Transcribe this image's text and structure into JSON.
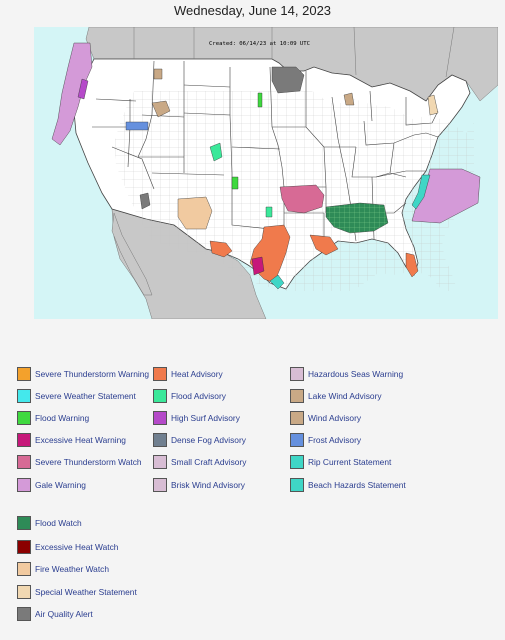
{
  "page": {
    "title": "Wednesday, June 14, 2023"
  },
  "map": {
    "created_label": "Created: 06/14/23 at 10:09 UTC",
    "colors": {
      "ocean": "#d4f5f6",
      "land_foreign": "#c8c8c8",
      "land_us": "#ffffff",
      "county_lines": "#bdbdbd",
      "state_lines": "#444444"
    }
  },
  "legend": {
    "columns": [
      [
        {
          "label": "Severe Thunderstorm Warning",
          "color": "#f3a12c"
        },
        {
          "label": "Severe Weather Statement",
          "color": "#44e8ec"
        },
        {
          "label": "Flood Warning",
          "color": "#3fd93f"
        },
        {
          "label": "Excessive Heat Warning",
          "color": "#c6187a"
        },
        {
          "label": "Severe Thunderstorm Watch",
          "color": "#d76a95"
        },
        {
          "label": "Gale Warning",
          "color": "#d49ad8"
        }
      ],
      [
        {
          "label": "Heat Advisory",
          "color": "#f07a4c"
        },
        {
          "label": "Flood Advisory",
          "color": "#3be89a"
        },
        {
          "label": "High Surf Advisory",
          "color": "#b54ac9"
        },
        {
          "label": "Dense Fog Advisory",
          "color": "#718090"
        },
        {
          "label": "Small Craft Advisory",
          "color": "#d8bdd4"
        },
        {
          "label": "Brisk Wind Advisory",
          "color": "#d8bdd4"
        }
      ],
      [
        {
          "label": "Hazardous Seas Warning",
          "color": "#d8bdd4"
        },
        {
          "label": "Lake Wind Advisory",
          "color": "#c9a986"
        },
        {
          "label": "Wind Advisory",
          "color": "#c9a986"
        },
        {
          "label": "Frost Advisory",
          "color": "#6590de"
        },
        {
          "label": "Rip Current Statement",
          "color": "#3fd6c6"
        },
        {
          "label": "Beach Hazards Statement",
          "color": "#3fd6c6"
        }
      ]
    ],
    "watches": [
      {
        "label": "Flood Watch",
        "color": "#2e8b57"
      },
      {
        "label": "Excessive Heat Watch",
        "color": "#8b0000"
      },
      {
        "label": "Fire Weather Watch",
        "color": "#f1caa0"
      },
      {
        "label": "Special Weather Statement",
        "color": "#f1d8b2"
      },
      {
        "label": "Air Quality Alert",
        "color": "#7a7a7a"
      }
    ]
  }
}
